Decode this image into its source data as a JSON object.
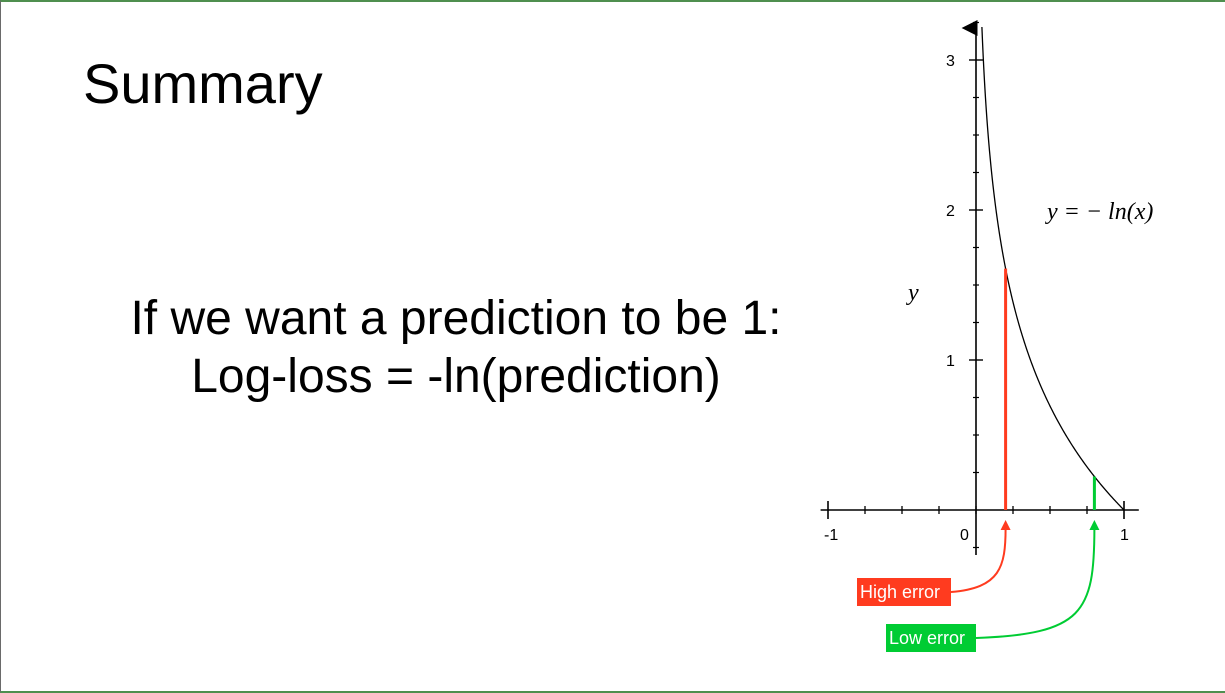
{
  "slide": {
    "title": "Summary",
    "body_lines": [
      "If we want a prediction to be 1:",
      "Log-loss = -ln(prediction)"
    ]
  },
  "plot": {
    "curve_label": "y = − ln(x)",
    "y_axis_label": "y",
    "callouts": [
      {
        "label": "High error",
        "x": 0.2,
        "color": "#ff3b1f"
      },
      {
        "label": "Low error",
        "x": 0.8,
        "color": "#00cc33"
      }
    ]
  },
  "chart_data": {
    "type": "line",
    "function": "-ln(x)",
    "series": [
      {
        "x": [
          0.04,
          0.05,
          0.1,
          0.2,
          0.3,
          0.4,
          0.5,
          0.6,
          0.7,
          0.8,
          0.9,
          1.0
        ],
        "y": [
          3.22,
          3.0,
          2.3,
          1.61,
          1.2,
          0.92,
          0.69,
          0.51,
          0.36,
          0.22,
          0.11,
          0.0
        ]
      }
    ],
    "highlights": [
      {
        "x": 0.2,
        "y": 1.61,
        "color": "#ff3b1f",
        "label": "High error"
      },
      {
        "x": 0.8,
        "y": 0.22,
        "color": "#00cc33",
        "label": "Low error"
      }
    ],
    "xlabel": "",
    "ylabel": "y",
    "x_tick_labels": [
      "-1",
      "0",
      "1"
    ],
    "y_tick_labels": [
      "1",
      "2",
      "3"
    ],
    "xlim": [
      -1,
      1
    ],
    "ylim": [
      -0.25,
      3.25
    ],
    "colors": {
      "curve": "#000000",
      "axes": "#000000"
    }
  }
}
